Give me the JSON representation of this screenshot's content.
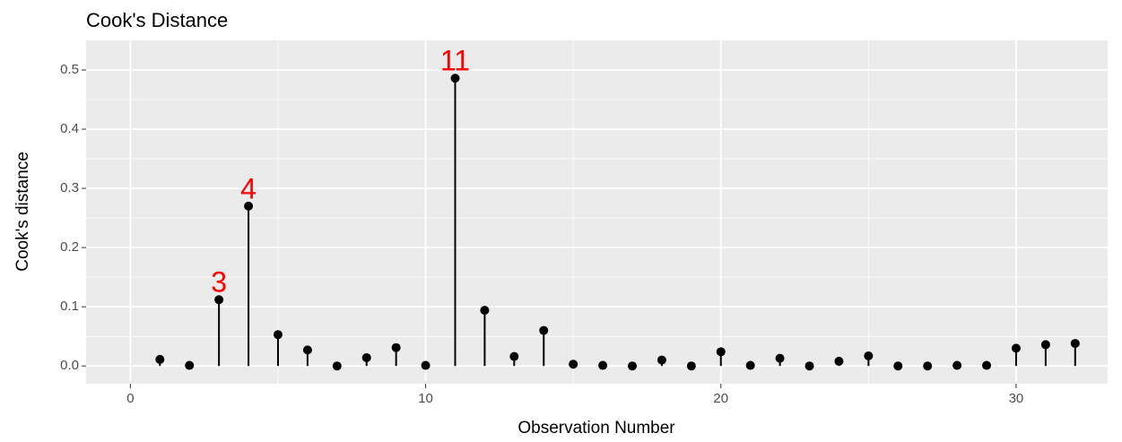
{
  "chart_data": {
    "type": "lollipop",
    "title": "Cook's Distance",
    "x_label": "Observation Number",
    "y_label": "Cook's distance",
    "x": [
      1,
      2,
      3,
      4,
      5,
      6,
      7,
      8,
      9,
      10,
      11,
      12,
      13,
      14,
      15,
      16,
      17,
      18,
      19,
      20,
      21,
      22,
      23,
      24,
      25,
      26,
      27,
      28,
      29,
      30,
      31,
      32
    ],
    "values": [
      0.011,
      0.001,
      0.112,
      0.27,
      0.053,
      0.027,
      0.0,
      0.014,
      0.031,
      0.001,
      0.486,
      0.094,
      0.016,
      0.06,
      0.003,
      0.001,
      0.0,
      0.01,
      0.0,
      0.024,
      0.001,
      0.013,
      0.0,
      0.008,
      0.017,
      0.0,
      0.0,
      0.001,
      0.001,
      0.03,
      0.036,
      0.038
    ],
    "point_labels": [
      null,
      null,
      "3",
      "4",
      null,
      null,
      null,
      null,
      null,
      null,
      "11",
      null,
      null,
      null,
      null,
      null,
      null,
      null,
      null,
      null,
      null,
      null,
      null,
      null,
      null,
      null,
      null,
      null,
      null,
      null,
      null,
      null
    ],
    "point_label_color": "#ff0000",
    "color": "#000000",
    "xlim": [
      -1.5,
      33.1
    ],
    "xticks": [
      0,
      10,
      20,
      30
    ],
    "x_minor_ticks": [
      5,
      15,
      25
    ],
    "ylim": [
      -0.03,
      0.55
    ],
    "yticks": [
      {
        "value": 0,
        "label": "0.0"
      },
      0.1,
      0.2,
      0.3,
      0.4,
      0.5
    ],
    "y_minor_ticks": [
      0.05,
      0.15,
      0.25,
      0.35,
      0.45
    ],
    "grid": true
  }
}
